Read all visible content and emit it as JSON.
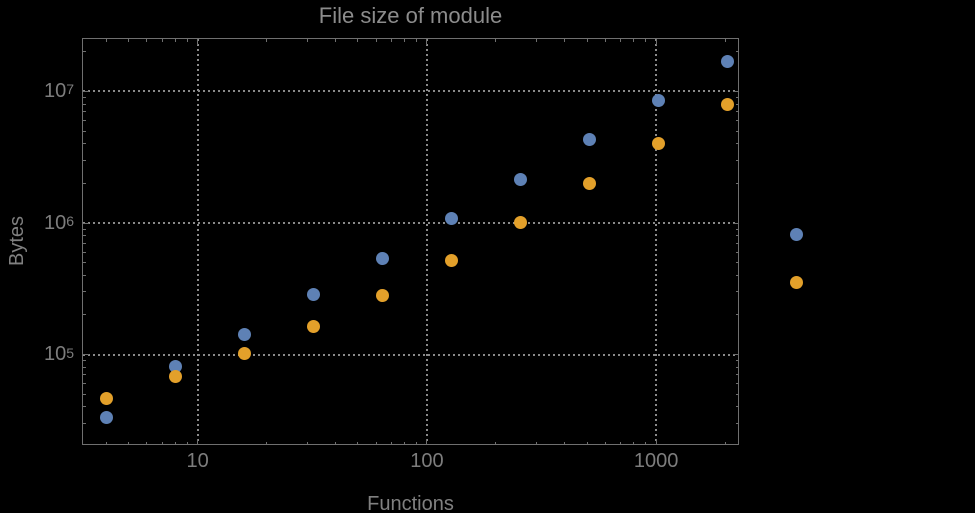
{
  "title": "File size of module",
  "axes": {
    "xlabel": "Functions",
    "ylabel": "Bytes"
  },
  "colors": {
    "background": "#000000",
    "frame": "#6f6f6f",
    "grid": "#8a8a8a",
    "tick_text": "#7d7d7d",
    "title_text": "#8c8c8c",
    "axis_label_text": "#808080",
    "series_blue": "#5e81b5",
    "series_orange": "#e3a02a"
  },
  "chart_data": {
    "type": "scatter",
    "title": "File size of module",
    "xlabel": "Functions",
    "ylabel": "Bytes",
    "x_scale": "log",
    "y_scale": "log",
    "grid": "dotted lines at decades",
    "legend": "none",
    "x": [
      4,
      8,
      16,
      32,
      64,
      128,
      256,
      512,
      1024,
      2048,
      4096
    ],
    "series": [
      {
        "name": "series-1-blue",
        "color_key": "series_blue",
        "values": [
          33000,
          81000,
          143000,
          285000,
          535000,
          1080000,
          2150000,
          4350000,
          8600000,
          17000000,
          820000
        ]
      },
      {
        "name": "series-2-orange",
        "color_key": "series_orange",
        "values": [
          46000,
          68000,
          101000,
          163000,
          280000,
          520000,
          1010000,
          2000000,
          4000000,
          8000000,
          355000
        ]
      }
    ],
    "x_major_ticks": [
      {
        "value": 10,
        "label": "10"
      },
      {
        "value": 100,
        "label": "100"
      },
      {
        "value": 1000,
        "label": "1000"
      }
    ],
    "y_major_ticks": [
      {
        "value": 100000,
        "base": "10",
        "exponent": "5"
      },
      {
        "value": 1000000,
        "base": "10",
        "exponent": "6"
      },
      {
        "value": 10000000,
        "base": "10",
        "exponent": "7"
      }
    ],
    "x_range": [
      3.13,
      2286
    ],
    "y_range": [
      20700,
      25500000
    ]
  }
}
